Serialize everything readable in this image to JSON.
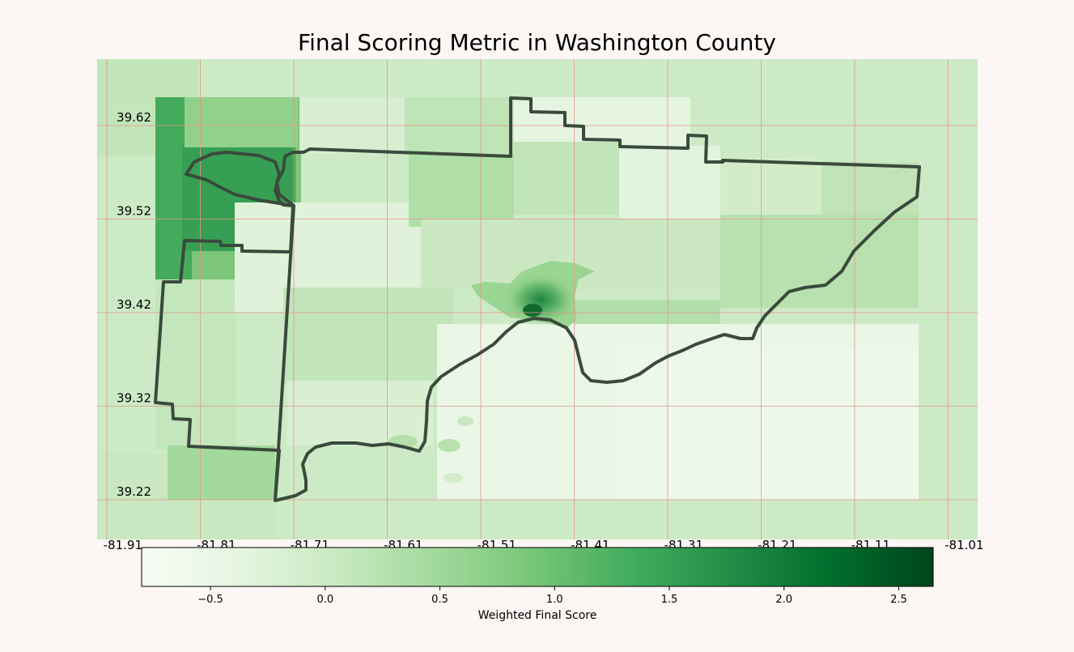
{
  "title": "Final Scoring Metric in Washington County",
  "axes": {
    "x_ticks": [
      "-81.91",
      "-81.81",
      "-81.71",
      "-81.61",
      "-81.51",
      "-81.41",
      "-81.31",
      "-81.21",
      "-81.11",
      "-81.01"
    ],
    "y_ticks": [
      "39.62",
      "39.52",
      "39.42",
      "39.32",
      "39.22"
    ],
    "grid": true,
    "grid_color": "#e5958a"
  },
  "colorbar": {
    "label": "Weighted Final Score",
    "ticks": [
      "−0.5",
      "0.0",
      "0.5",
      "1.0",
      "1.5",
      "2.0",
      "2.5"
    ],
    "min": -0.8,
    "max": 2.65,
    "tick_values": [
      -0.5,
      0.0,
      0.5,
      1.0,
      1.5,
      2.0,
      2.5
    ],
    "colors": [
      "#f7fcf5",
      "#e5f5e0",
      "#c7e9c0",
      "#a1d99b",
      "#74c476",
      "#41ab5d",
      "#238b45",
      "#006d2c",
      "#00441b"
    ]
  },
  "colors": {
    "background": "#fcf7f5",
    "outline": "#3a4a3c"
  }
}
